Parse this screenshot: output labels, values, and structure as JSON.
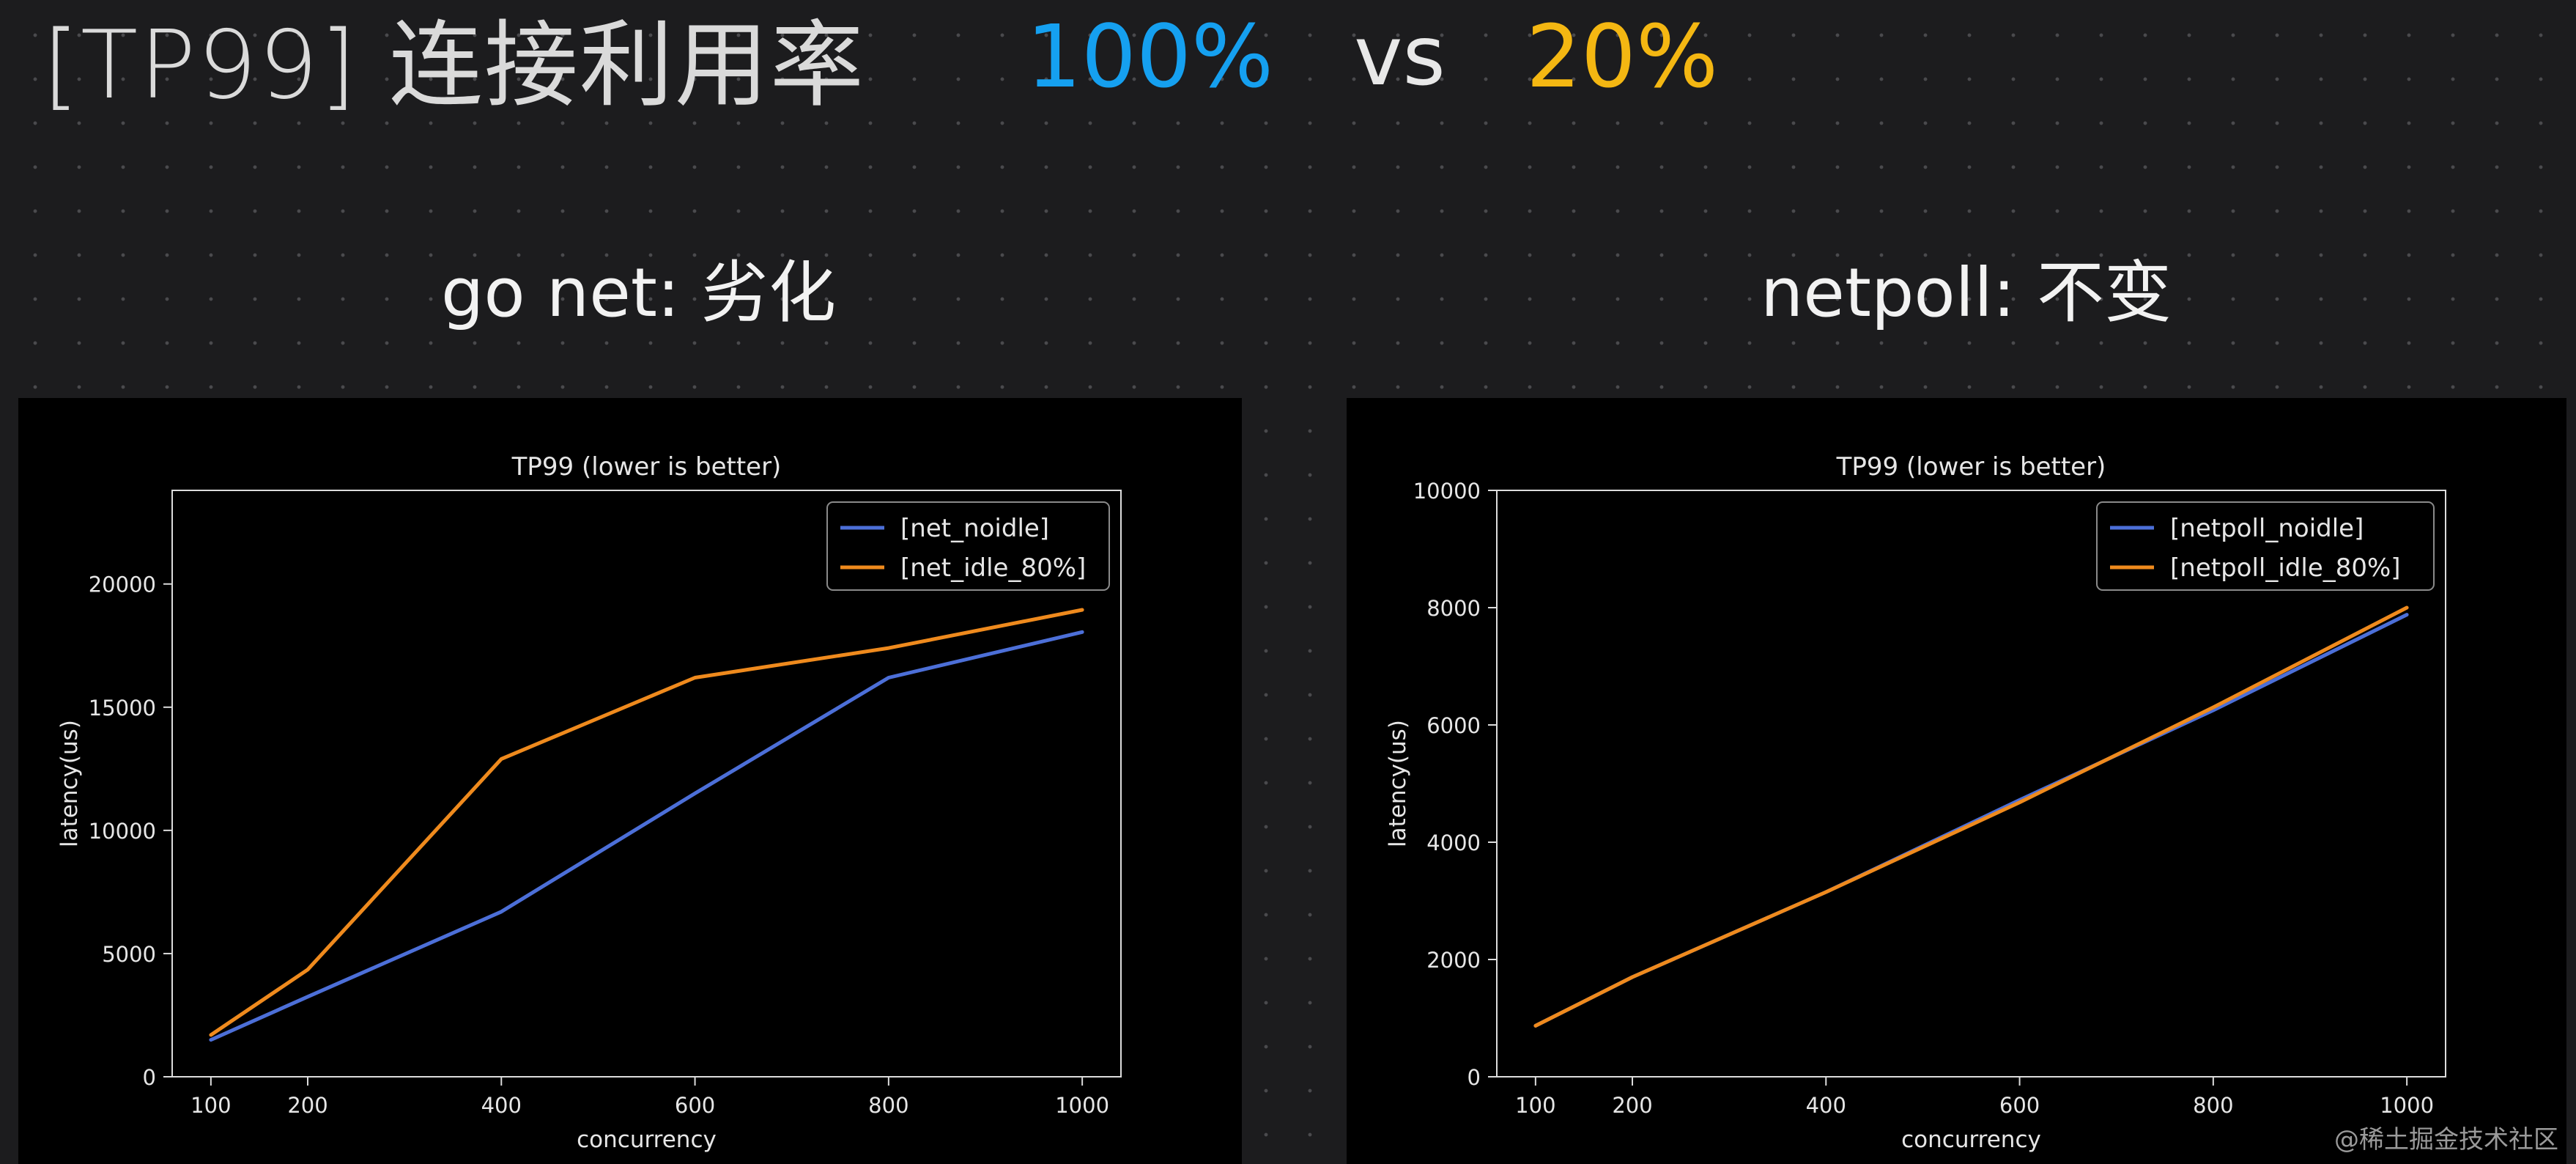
{
  "header": {
    "title": "[TP99] 连接利用率",
    "value_a": "100%",
    "vs": "vs",
    "value_b": "20%",
    "colors": {
      "value_a": "#15a0f0",
      "value_b": "#f4b712"
    }
  },
  "subtitles": {
    "left": "go net: 劣化",
    "right": "netpoll: 不变"
  },
  "watermark": "@稀土掘金技术社区",
  "chart_data": [
    {
      "type": "line",
      "title": "TP99 (lower is better)",
      "xlabel": "concurrency",
      "ylabel": "latency(us)",
      "x": [
        100,
        200,
        400,
        600,
        800,
        1000
      ],
      "x_ticks": [
        "100",
        "200",
        "400",
        "600",
        "800",
        "1000"
      ],
      "y_ticks": [
        "0",
        "5000",
        "10000",
        "15000",
        "20000"
      ],
      "ylim": [
        0,
        23800
      ],
      "legend_position": "top-right",
      "series": [
        {
          "name": "[net_noidle]",
          "color": "#4c6fd8",
          "values": [
            1500,
            3250,
            6700,
            11500,
            16200,
            18050
          ]
        },
        {
          "name": "[net_idle_80%]",
          "color": "#ef8a1d",
          "values": [
            1700,
            4350,
            12900,
            16200,
            17400,
            18950
          ]
        }
      ]
    },
    {
      "type": "line",
      "title": "TP99 (lower is better)",
      "xlabel": "concurrency",
      "ylabel": "latency(us)",
      "x": [
        100,
        200,
        400,
        600,
        800,
        1000
      ],
      "x_ticks": [
        "100",
        "200",
        "400",
        "600",
        "800",
        "1000"
      ],
      "y_ticks": [
        "0",
        "2000",
        "4000",
        "6000",
        "8000",
        "10000"
      ],
      "ylim": [
        0,
        10000
      ],
      "legend_position": "top-right",
      "series": [
        {
          "name": "[netpoll_noidle]",
          "color": "#4c6fd8",
          "values": [
            870,
            1700,
            3150,
            4720,
            6250,
            7880
          ]
        },
        {
          "name": "[netpoll_idle_80%]",
          "color": "#ef8a1d",
          "values": [
            870,
            1700,
            3150,
            4680,
            6300,
            8000
          ]
        }
      ]
    }
  ]
}
